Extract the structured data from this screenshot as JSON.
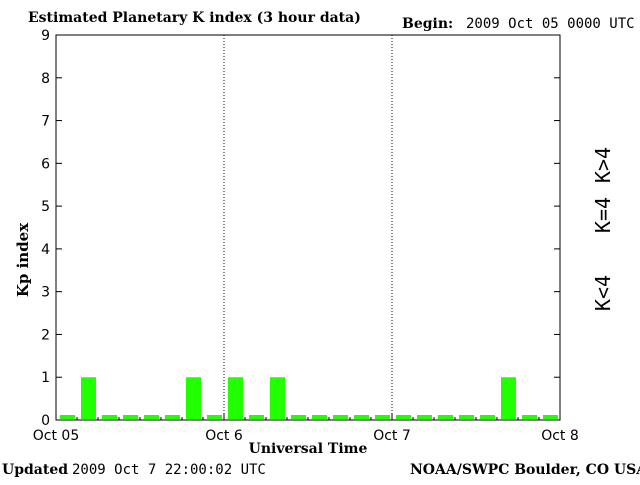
{
  "header": {
    "title": "Estimated Planetary K index (3 hour data)",
    "begin_label": "Begin:",
    "begin_value": "2009 Oct 05 0000 UTC"
  },
  "footer": {
    "updated_label": "Updated",
    "updated_value": "2009 Oct  7 22:00:02 UTC",
    "source": "NOAA/SWPC Boulder, CO USA"
  },
  "legend": {
    "items": [
      {
        "label": "K>4",
        "color": "#ff2a00"
      },
      {
        "label": "K=4",
        "color": "#ffd800"
      },
      {
        "label": "K<4",
        "color": "#22ff00"
      }
    ]
  },
  "chart_data": {
    "type": "bar",
    "title": "Estimated Planetary K index (3 hour data)",
    "xlabel": "Universal Time",
    "ylabel": "Kp index",
    "ylim": [
      0,
      9
    ],
    "yticks": [
      0,
      1,
      2,
      3,
      4,
      5,
      6,
      7,
      8,
      9
    ],
    "xticks": [
      "Oct 05",
      "Oct 6",
      "Oct 7",
      "Oct 8"
    ],
    "bar_color": "#22ff00",
    "categories": [
      "Oct 05 00",
      "Oct 05 03",
      "Oct 05 06",
      "Oct 05 09",
      "Oct 05 12",
      "Oct 05 15",
      "Oct 05 18",
      "Oct 05 21",
      "Oct 06 00",
      "Oct 06 03",
      "Oct 06 06",
      "Oct 06 09",
      "Oct 06 12",
      "Oct 06 15",
      "Oct 06 18",
      "Oct 06 21",
      "Oct 07 00",
      "Oct 07 03",
      "Oct 07 06",
      "Oct 07 09",
      "Oct 07 12",
      "Oct 07 15",
      "Oct 07 18",
      "Oct 07 21"
    ],
    "values": [
      0,
      1,
      0,
      0,
      0,
      0,
      1,
      0,
      1,
      0,
      1,
      0,
      0,
      0,
      0,
      0,
      0,
      0,
      0,
      0,
      0,
      1,
      0,
      0
    ],
    "day_separators": [
      "Oct 6",
      "Oct 7"
    ]
  }
}
